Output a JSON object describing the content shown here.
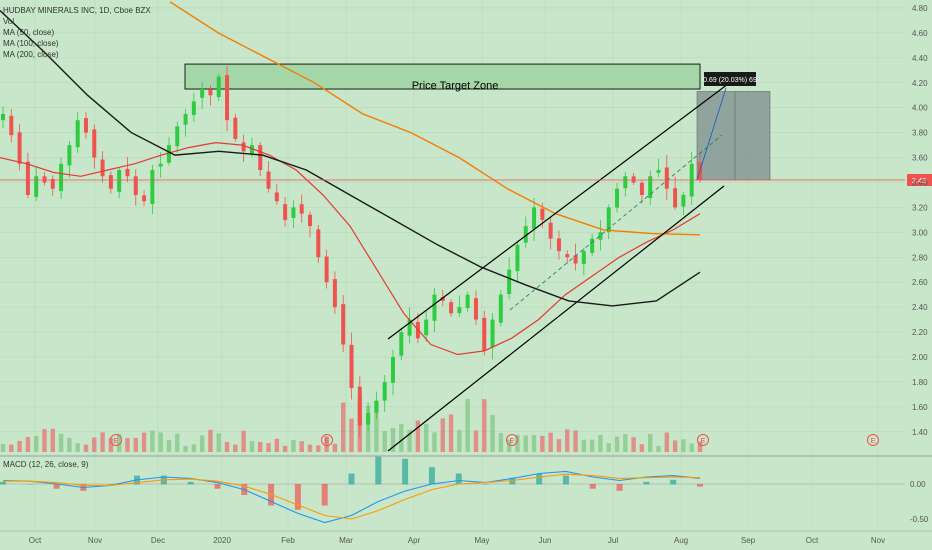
{
  "colors": {
    "background": "#c8e6c9",
    "up_candle": "#26a69a",
    "up_candle_bright": "#2ecc40",
    "down_candle": "#ef5350",
    "ma50": "#e53935",
    "ma100": "#f57c00",
    "ma200": "#1a1a1a",
    "price_line": "#ef5350",
    "target_zone_fill": "#a5d6a7",
    "projection_fill": "#7f8c8d",
    "macd_line": "#2196f3",
    "signal_line": "#ff9800",
    "grid": "#b5d6b7"
  },
  "legend": {
    "title": "HUDBAY MINERALS INC, 1D, Cboe BZX",
    "vol": "Vol",
    "ma1": "MA (50, close)",
    "ma2": "MA (100, close)",
    "ma3": "MA (200, close)"
  },
  "macd_legend": "MACD (12, 26, close, 9)",
  "price_target_zone_label": "Price Target Zone",
  "measure_tag": "0.69 (20.03%) 69",
  "current_price_tag": "3.42",
  "earnings_marker": "E",
  "chart_data": {
    "type": "candlestick",
    "title": "HUDBAY MINERALS INC, 1D, Cboe BZX",
    "xaxis_labels": [
      "Oct",
      "Nov",
      "Dec",
      "2020",
      "Feb",
      "Mar",
      "Apr",
      "May",
      "Jun",
      "Jul",
      "Aug",
      "Sep",
      "Oct",
      "Nov"
    ],
    "yaxis_ticks": [
      "4.80",
      "4.60",
      "4.40",
      "4.20",
      "4.00",
      "3.80",
      "3.60",
      "3.40",
      "3.20",
      "3.00",
      "2.80",
      "2.60",
      "2.40",
      "2.20",
      "2.00",
      "1.80",
      "1.60",
      "1.40"
    ],
    "ylim": [
      1.3,
      4.85
    ],
    "macd_yaxis_ticks": [
      "0.00",
      "-0.50"
    ],
    "macd_ylim": [
      -0.62,
      0.25
    ],
    "current_price": 3.42,
    "closes": [
      3.95,
      3.78,
      3.55,
      3.3,
      3.45,
      3.4,
      3.35,
      3.55,
      3.7,
      3.9,
      3.8,
      3.6,
      3.45,
      3.35,
      3.5,
      3.45,
      3.3,
      3.25,
      3.5,
      3.55,
      3.7,
      3.85,
      3.95,
      4.05,
      4.15,
      4.1,
      4.25,
      3.9,
      3.75,
      3.65,
      3.7,
      3.5,
      3.35,
      3.25,
      3.1,
      3.2,
      3.15,
      3.05,
      2.8,
      2.6,
      2.4,
      2.1,
      1.75,
      1.45,
      1.55,
      1.65,
      1.8,
      2.0,
      2.2,
      2.3,
      2.15,
      2.3,
      2.5,
      2.45,
      2.35,
      2.4,
      2.5,
      2.3,
      2.05,
      2.3,
      2.5,
      2.7,
      2.9,
      3.05,
      3.2,
      3.1,
      2.95,
      2.85,
      2.8,
      2.75,
      2.85,
      2.95,
      3.0,
      3.2,
      3.35,
      3.45,
      3.4,
      3.3,
      3.45,
      3.5,
      3.35,
      3.2,
      3.3,
      3.55,
      3.42
    ],
    "ma50": [
      3.6,
      3.55,
      3.48,
      3.45,
      3.5,
      3.55,
      3.62,
      3.68,
      3.72,
      3.7,
      3.62,
      3.5,
      3.3,
      3.05,
      2.7,
      2.35,
      2.1,
      2.02,
      2.05,
      2.15,
      2.3,
      2.5,
      2.65,
      2.8,
      2.92,
      3.02,
      3.15
    ],
    "ma100": [
      4.85,
      4.6,
      4.4,
      4.2,
      3.95,
      3.8,
      3.6,
      3.35,
      3.15,
      3.02,
      2.99,
      2.98
    ],
    "ma200": [
      4.78,
      4.45,
      4.1,
      3.8,
      3.62,
      3.65,
      3.62,
      3.5,
      3.3,
      3.1,
      2.9,
      2.72,
      2.58,
      2.45,
      2.41,
      2.45,
      2.68
    ],
    "channel_upper_start": [
      388,
      339
    ],
    "channel_upper_end": [
      728,
      84
    ],
    "price_target_zone": [
      4.15,
      4.35
    ],
    "measure": {
      "from": 3.42,
      "to": 4.11,
      "change": 0.69,
      "percent": 20.03
    },
    "macd": [
      0.05,
      0.04,
      0.0,
      -0.05,
      -0.02,
      0.06,
      0.1,
      0.08,
      0.02,
      -0.08,
      -0.25,
      -0.42,
      -0.55,
      -0.45,
      -0.25,
      -0.1,
      0.0,
      0.05,
      0.02,
      0.08,
      0.15,
      0.18,
      0.1,
      0.05,
      0.1,
      0.12,
      0.08
    ],
    "signal": [
      0.04,
      0.04,
      0.02,
      -0.02,
      -0.02,
      0.02,
      0.06,
      0.07,
      0.04,
      -0.03,
      -0.15,
      -0.3,
      -0.45,
      -0.5,
      -0.38,
      -0.22,
      -0.08,
      0.0,
      0.02,
      0.05,
      0.1,
      0.14,
      0.12,
      0.08,
      0.09,
      0.1,
      0.09
    ]
  }
}
